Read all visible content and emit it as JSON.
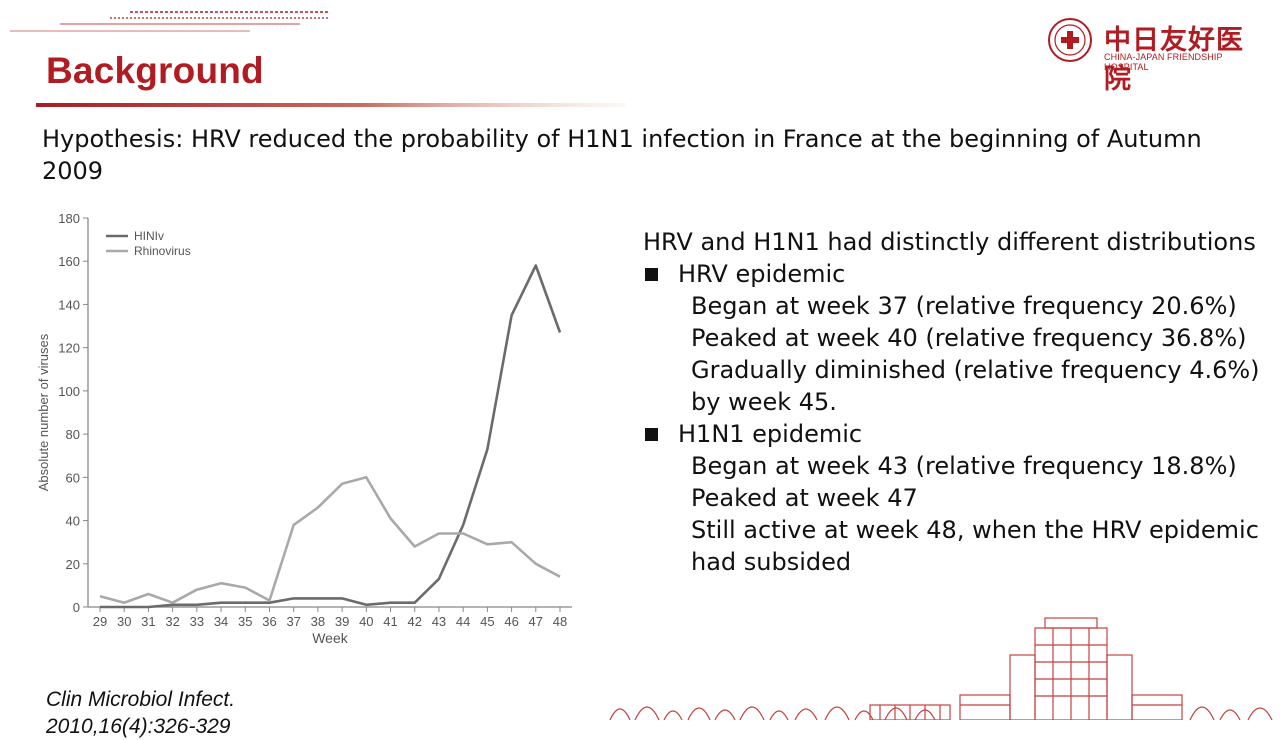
{
  "header": {
    "title": "Background"
  },
  "logo": {
    "name_zh": "中日友好医院",
    "name_en": "CHINA-JAPAN FRIENDSHIP HOSPITAL"
  },
  "hypothesis": "Hypothesis: HRV reduced the probability of H1N1 infection in France at the beginning of Autumn 2009",
  "chart_data": {
    "type": "line",
    "xlabel": "Week",
    "ylabel": "Absolute number of viruses",
    "ylim": [
      0,
      180
    ],
    "yticks": [
      0,
      20,
      40,
      60,
      80,
      100,
      120,
      140,
      160,
      180
    ],
    "x": [
      "29",
      "30",
      "31",
      "32",
      "33",
      "34",
      "35",
      "36",
      "37",
      "38",
      "39",
      "40",
      "41",
      "42",
      "43",
      "44",
      "45",
      "46",
      "47",
      "48"
    ],
    "legend_position": "top-left",
    "grid": false,
    "series": [
      {
        "name": "HINIv",
        "color": "#6b6b6b",
        "values": [
          0,
          0,
          0,
          1,
          1,
          2,
          2,
          2,
          4,
          4,
          4,
          1,
          2,
          2,
          13,
          38,
          73,
          135,
          158,
          127
        ]
      },
      {
        "name": "Rhinovirus",
        "color": "#a9a9a9",
        "values": [
          5,
          2,
          6,
          2,
          8,
          11,
          9,
          3,
          38,
          46,
          57,
          60,
          41,
          28,
          34,
          34,
          29,
          30,
          20,
          14
        ]
      }
    ]
  },
  "findings": {
    "lead": "HRV and H1N1 had distinctly different distributions",
    "groups": [
      {
        "heading": "HRV epidemic",
        "items": [
          "Began at week 37 (relative frequency 20.6%)",
          "Peaked at week 40 (relative frequency 36.8%)",
          "Gradually diminished (relative frequency 4.6%) by week 45."
        ]
      },
      {
        "heading": "H1N1 epidemic",
        "items": [
          "Began at week 43 (relative frequency 18.8%)",
          "Peaked at week 47",
          "Still active at week 48, when the HRV epidemic had subsided"
        ]
      }
    ]
  },
  "citation": {
    "line1": "Clin Microbiol Infect.",
    "line2": "2010,16(4):326-329"
  },
  "colors": {
    "accent": "#b01c22"
  }
}
